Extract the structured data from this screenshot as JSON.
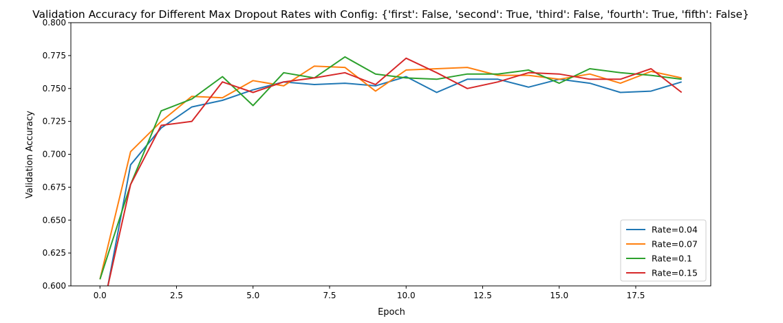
{
  "chart_data": {
    "type": "line",
    "title": "Validation Accuracy for Different Max Dropout Rates with Config: {'first': False, 'second': True, 'third': False, 'fourth': True, 'fifth': False}",
    "xlabel": "Epoch",
    "ylabel": "Validation Accuracy",
    "xlim": [
      -0.95,
      19.95
    ],
    "ylim": [
      0.6,
      0.8
    ],
    "xticks": [
      0.0,
      2.5,
      5.0,
      7.5,
      10.0,
      12.5,
      15.0,
      17.5
    ],
    "xtick_labels": [
      "0.0",
      "2.5",
      "5.0",
      "7.5",
      "10.0",
      "12.5",
      "15.0",
      "17.5"
    ],
    "yticks": [
      0.6,
      0.625,
      0.65,
      0.675,
      0.7,
      0.725,
      0.75,
      0.775,
      0.8
    ],
    "ytick_labels": [
      "0.600",
      "0.625",
      "0.650",
      "0.675",
      "0.700",
      "0.725",
      "0.750",
      "0.775",
      "0.800"
    ],
    "grid": false,
    "legend_position": "lower-right",
    "x": [
      0,
      1,
      2,
      3,
      4,
      5,
      6,
      7,
      8,
      9,
      10,
      11,
      12,
      13,
      14,
      15,
      16,
      17,
      18,
      19
    ],
    "series": [
      {
        "name": "Rate=0.04",
        "color": "#1f77b4",
        "values": [
          0.568,
          0.692,
          0.72,
          0.736,
          0.741,
          0.749,
          0.755,
          0.753,
          0.754,
          0.752,
          0.759,
          0.747,
          0.757,
          0.757,
          0.751,
          0.757,
          0.754,
          0.747,
          0.748,
          0.755
        ]
      },
      {
        "name": "Rate=0.07",
        "color": "#ff7f0e",
        "values": [
          0.605,
          0.702,
          0.725,
          0.744,
          0.743,
          0.756,
          0.752,
          0.767,
          0.766,
          0.748,
          0.764,
          0.765,
          0.766,
          0.76,
          0.76,
          0.757,
          0.761,
          0.754,
          0.763,
          0.758
        ]
      },
      {
        "name": "Rate=0.1",
        "color": "#2ca02c",
        "values": [
          0.605,
          0.677,
          0.733,
          0.742,
          0.759,
          0.737,
          0.762,
          0.758,
          0.774,
          0.761,
          0.758,
          0.757,
          0.761,
          0.761,
          0.764,
          0.754,
          0.765,
          0.762,
          0.76,
          0.757
        ]
      },
      {
        "name": "Rate=0.15",
        "color": "#d62728",
        "values": [
          0.573,
          0.677,
          0.722,
          0.725,
          0.755,
          0.747,
          0.755,
          0.758,
          0.762,
          0.753,
          0.773,
          0.762,
          0.75,
          0.755,
          0.762,
          0.761,
          0.757,
          0.757,
          0.765,
          0.747
        ]
      }
    ]
  }
}
